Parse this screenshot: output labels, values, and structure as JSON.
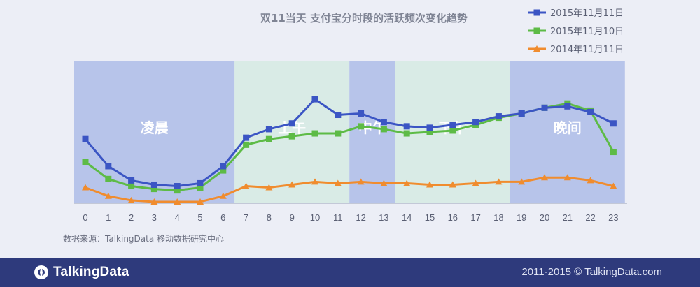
{
  "chart_data": {
    "type": "line",
    "title": "双11当天 支付宝分时段的活跃频次变化趋势",
    "x": [
      "0",
      "1",
      "2",
      "3",
      "4",
      "5",
      "6",
      "7",
      "8",
      "9",
      "10",
      "11",
      "12",
      "13",
      "14",
      "15",
      "16",
      "17",
      "18",
      "19",
      "20",
      "21",
      "22",
      "23"
    ],
    "ylim": [
      0,
      100
    ],
    "grid": false,
    "legend_position": "top-right",
    "series": [
      {
        "name": "2015年11月11日",
        "color": "#3b55c4",
        "marker": "square",
        "values": [
          45,
          26,
          16,
          13,
          12,
          14,
          26,
          46,
          52,
          56,
          73,
          62,
          63,
          57,
          54,
          53,
          55,
          57,
          61,
          63,
          67,
          68,
          64,
          56
        ]
      },
      {
        "name": "2015年11月10日",
        "color": "#5dbb46",
        "marker": "square",
        "values": [
          29,
          17,
          12,
          10,
          9,
          11,
          23,
          41,
          45,
          47,
          49,
          49,
          54,
          52,
          49,
          50,
          51,
          55,
          60,
          63,
          67,
          70,
          65,
          36
        ]
      },
      {
        "name": "2014年11月11日",
        "color": "#f08c2e",
        "marker": "triangle",
        "values": [
          11,
          5,
          2,
          1,
          1,
          1,
          5,
          12,
          11,
          13,
          15,
          14,
          15,
          14,
          14,
          13,
          13,
          14,
          15,
          15,
          18,
          18,
          16,
          12
        ]
      }
    ],
    "bands": [
      {
        "label": "凌晨",
        "from": -0.5,
        "to": 6.5,
        "color": "#b7c4ea"
      },
      {
        "label": "上午",
        "from": 6.5,
        "to": 11.5,
        "color": "#d9ebe6"
      },
      {
        "label": "中午",
        "from": 11.5,
        "to": 13.5,
        "color": "#b7c4ea"
      },
      {
        "label": "下午",
        "from": 13.5,
        "to": 18.5,
        "color": "#d9ebe6"
      },
      {
        "label": "晚间",
        "from": 18.5,
        "to": 23.5,
        "color": "#b7c4ea"
      }
    ]
  },
  "source_note": "数据来源：TalkingData 移动数据研究中心",
  "footer": {
    "brand": "TalkingData",
    "copyright": "2011-2015 © TalkingData.com"
  }
}
